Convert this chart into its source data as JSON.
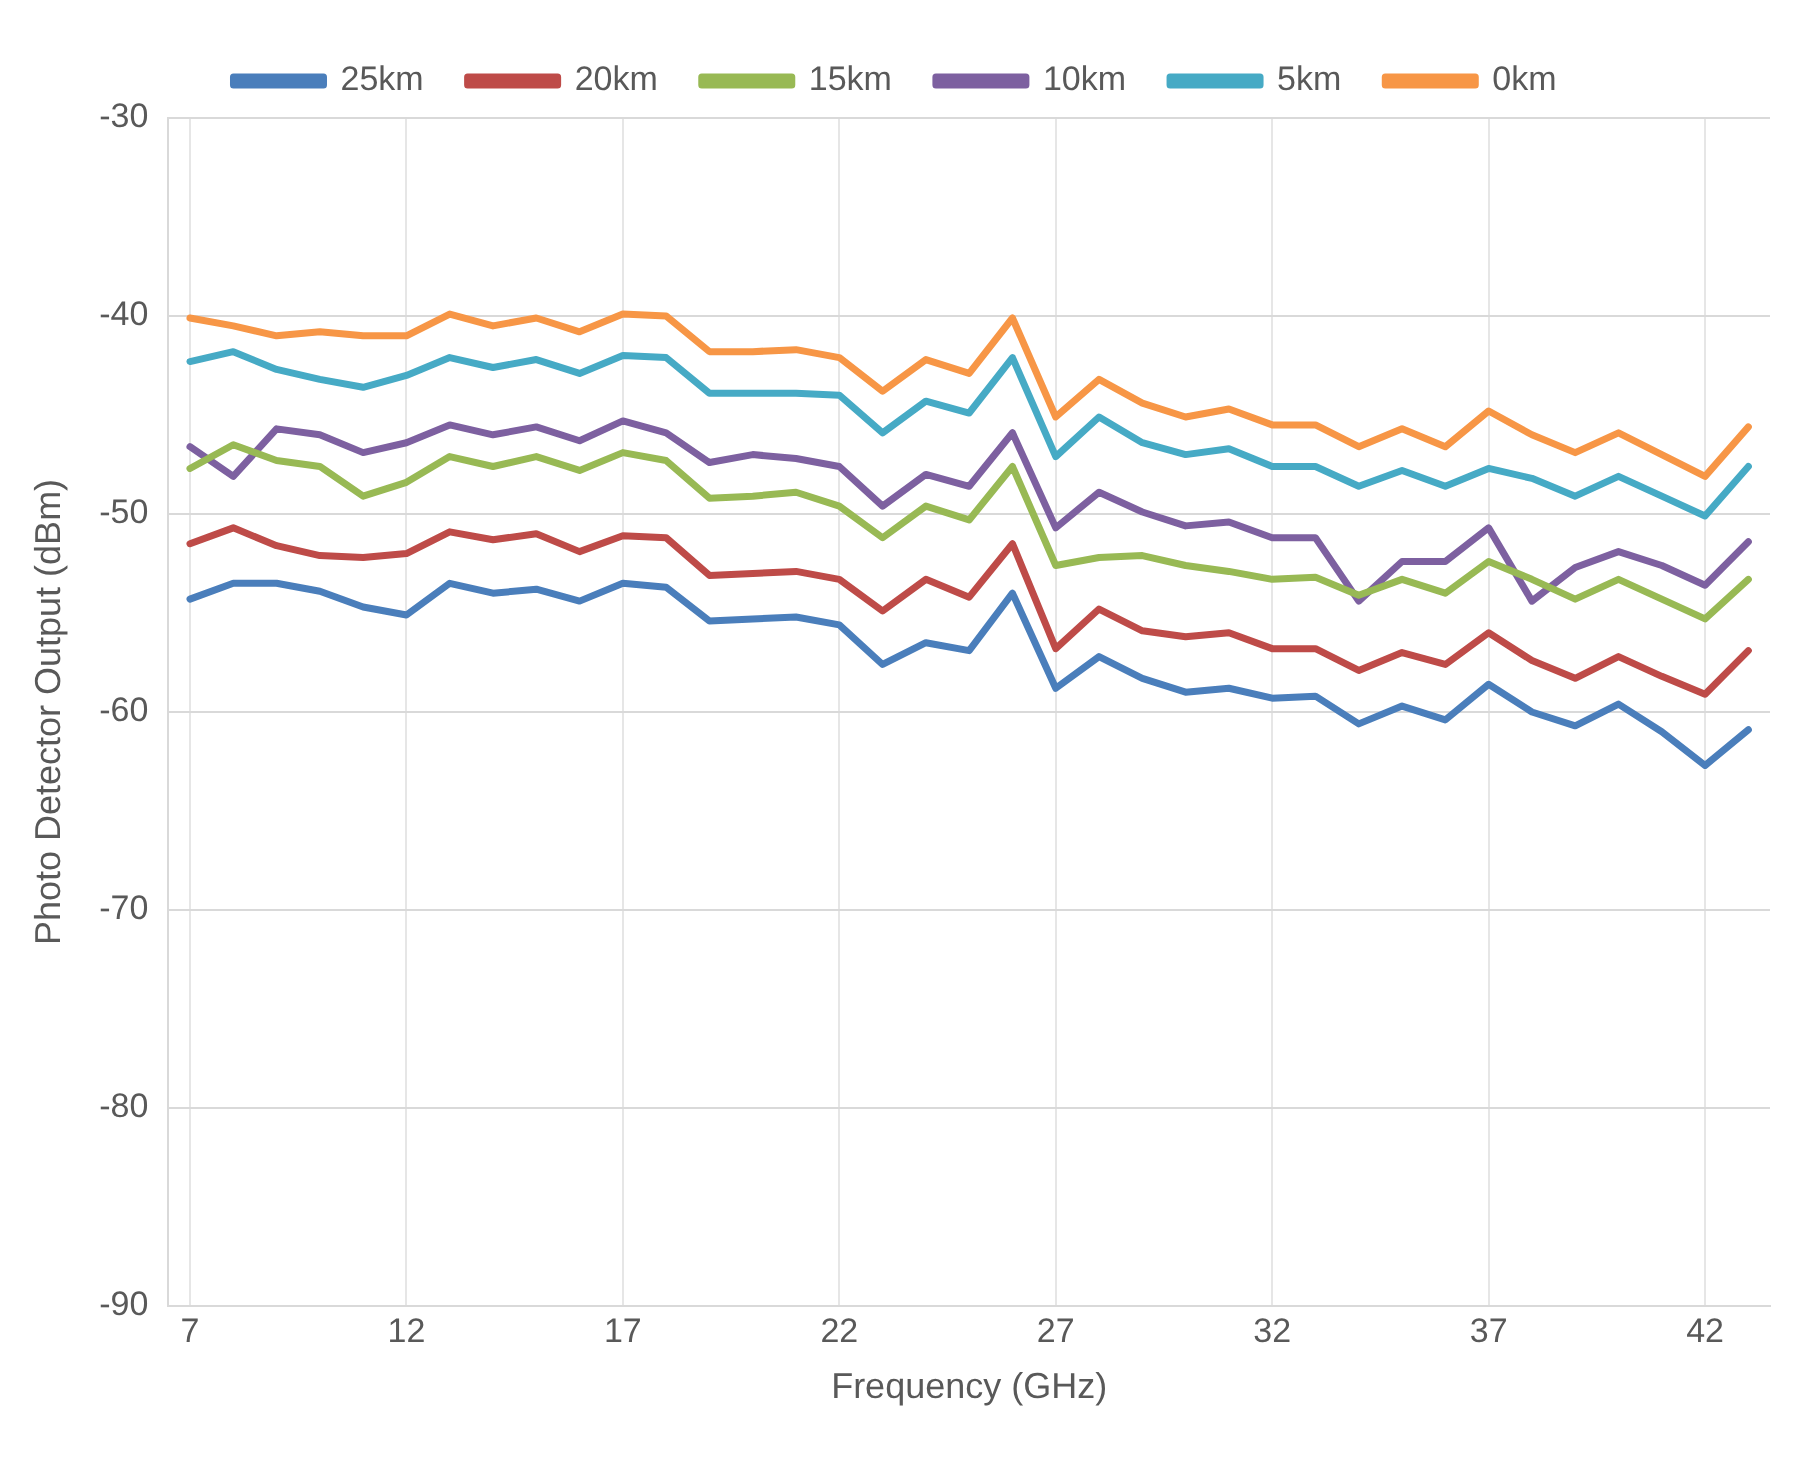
{
  "chart_data": {
    "type": "line",
    "xlabel": "Frequency (GHz)",
    "ylabel": "Photo Detector Output (dBm)",
    "x": [
      7,
      8,
      9,
      10,
      11,
      12,
      13,
      14,
      15,
      16,
      17,
      18,
      19,
      20,
      21,
      22,
      23,
      24,
      25,
      26,
      27,
      28,
      29,
      30,
      31,
      32,
      33,
      34,
      35,
      36,
      37,
      38,
      39,
      40,
      41,
      42,
      43
    ],
    "xlim": [
      6.5,
      43.5
    ],
    "xticks": [
      7,
      12,
      17,
      22,
      27,
      32,
      37,
      42
    ],
    "ylim": [
      -90,
      -30
    ],
    "yticks": [
      -90,
      -80,
      -70,
      -60,
      -50,
      -40,
      -30
    ],
    "grid": true,
    "legend": "top",
    "marker": "none",
    "line_style": "solid",
    "series": [
      {
        "name": "25km",
        "color": "#4a7ebb",
        "values": [
          -54.3,
          -53.5,
          -53.5,
          -53.9,
          -54.7,
          -55.1,
          -53.5,
          -54.0,
          -53.8,
          -54.4,
          -53.5,
          -53.7,
          -55.4,
          -55.3,
          -55.2,
          -55.6,
          -57.6,
          -56.5,
          -56.9,
          -54.0,
          -58.8,
          -57.2,
          -58.3,
          -59.0,
          -58.8,
          -59.3,
          -59.2,
          -60.6,
          -59.7,
          -60.4,
          -58.6,
          -60.0,
          -60.7,
          -59.6,
          -61.0,
          -62.7,
          -60.9
        ]
      },
      {
        "name": "20km",
        "color": "#be4b48",
        "values": [
          -51.5,
          -50.7,
          -51.6,
          -52.1,
          -52.2,
          -52.0,
          -50.9,
          -51.3,
          -51.0,
          -51.9,
          -51.1,
          -51.2,
          -53.1,
          -53.0,
          -52.9,
          -53.3,
          -54.9,
          -53.3,
          -54.2,
          -51.5,
          -56.8,
          -54.8,
          -55.9,
          -56.2,
          -56.0,
          -56.8,
          -56.8,
          -57.9,
          -57.0,
          -57.6,
          -56.0,
          -57.4,
          -58.3,
          -57.2,
          -58.2,
          -59.1,
          -56.9
        ]
      },
      {
        "name": "15km",
        "color": "#98b954",
        "values": [
          -47.7,
          -46.5,
          -47.3,
          -47.6,
          -49.1,
          -48.4,
          -47.1,
          -47.6,
          -47.1,
          -47.8,
          -46.9,
          -47.3,
          -49.2,
          -49.1,
          -48.9,
          -49.6,
          -51.2,
          -49.6,
          -50.3,
          -47.6,
          -52.6,
          -52.2,
          -52.1,
          -52.6,
          -52.9,
          -53.3,
          -53.2,
          -54.1,
          -53.3,
          -54.0,
          -52.4,
          -53.3,
          -54.3,
          -53.3,
          -54.3,
          -55.3,
          -53.3
        ]
      },
      {
        "name": "10km",
        "color": "#7d60a0",
        "values": [
          -46.6,
          -48.1,
          -45.7,
          -46.0,
          -46.9,
          -46.4,
          -45.5,
          -46.0,
          -45.6,
          -46.3,
          -45.3,
          -45.9,
          -47.4,
          -47.0,
          -47.2,
          -47.6,
          -49.6,
          -48.0,
          -48.6,
          -45.9,
          -50.7,
          -48.9,
          -49.9,
          -50.6,
          -50.4,
          -51.2,
          -51.2,
          -54.4,
          -52.4,
          -52.4,
          -50.7,
          -54.4,
          -52.7,
          -51.9,
          -52.6,
          -53.6,
          -51.4
        ]
      },
      {
        "name": "5km",
        "color": "#46aac5",
        "values": [
          -42.3,
          -41.8,
          -42.7,
          -43.2,
          -43.6,
          -43.0,
          -42.1,
          -42.6,
          -42.2,
          -42.9,
          -42.0,
          -42.1,
          -43.9,
          -43.9,
          -43.9,
          -44.0,
          -45.9,
          -44.3,
          -44.9,
          -42.1,
          -47.1,
          -45.1,
          -46.4,
          -47.0,
          -46.7,
          -47.6,
          -47.6,
          -48.6,
          -47.8,
          -48.6,
          -47.7,
          -48.2,
          -49.1,
          -48.1,
          -49.1,
          -50.1,
          -47.6
        ]
      },
      {
        "name": "0km",
        "color": "#f79646",
        "values": [
          -40.1,
          -40.5,
          -41.0,
          -40.8,
          -41.0,
          -41.0,
          -39.9,
          -40.5,
          -40.1,
          -40.8,
          -39.9,
          -40.0,
          -41.8,
          -41.8,
          -41.7,
          -42.1,
          -43.8,
          -42.2,
          -42.9,
          -40.1,
          -45.1,
          -43.2,
          -44.4,
          -45.1,
          -44.7,
          -45.5,
          -45.5,
          -46.6,
          -45.7,
          -46.6,
          -44.8,
          -46.0,
          -46.9,
          -45.9,
          -47.0,
          -48.1,
          -45.6
        ]
      }
    ]
  }
}
